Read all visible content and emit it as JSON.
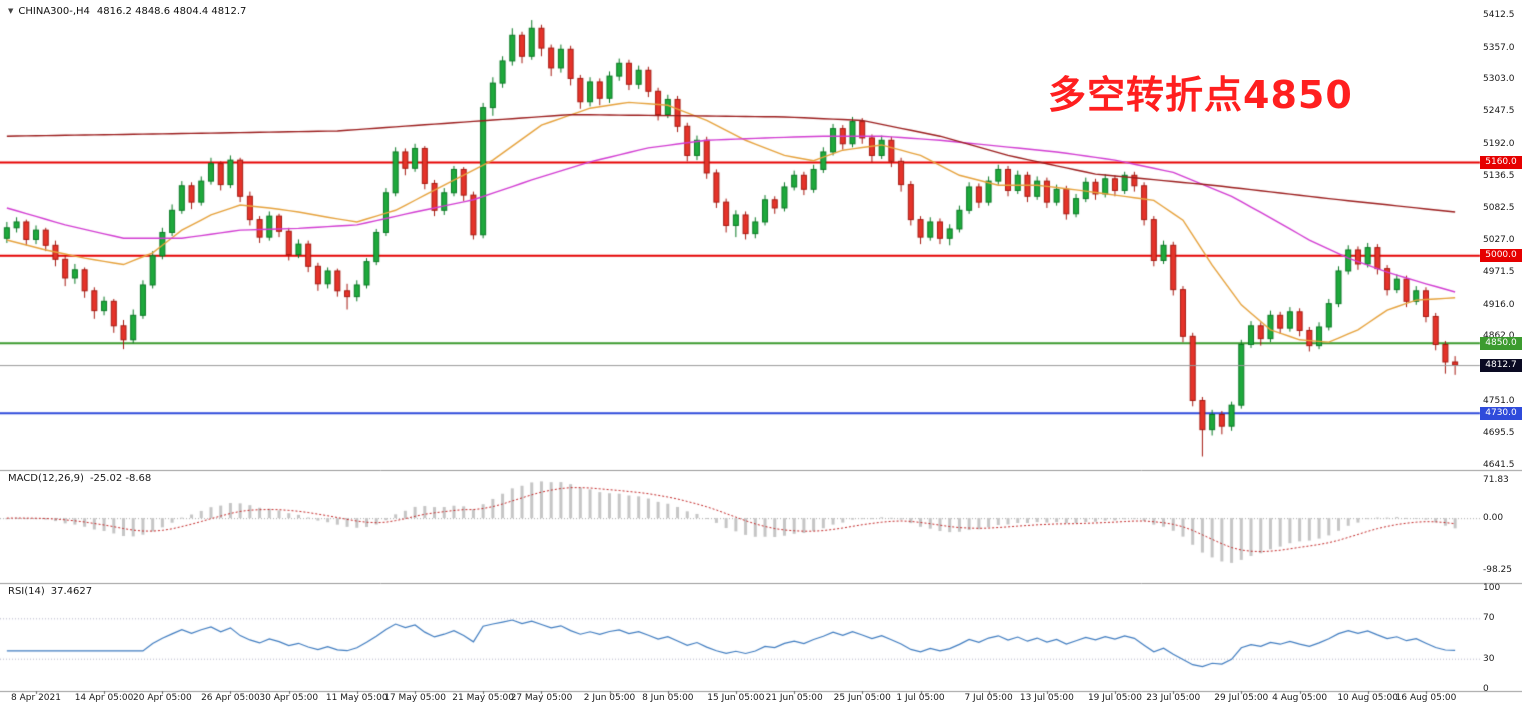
{
  "chart_data": {
    "type": "candlestick",
    "symbol": "CHINA300-,H4",
    "ohlc_text": "4816.2 4848.6 4804.4 4812.7",
    "annotation": {
      "text": "多空转折点4850",
      "color": "#FF1F1F"
    },
    "colors": {
      "bull": "#1EA93C",
      "bull_border": "#0B7A26",
      "bear": "#E5332A",
      "bear_border": "#A61A12",
      "background": "#FFFFFF",
      "separator": "#999999",
      "axis_text": "#1A1A1A",
      "current_price_line": "#9A9A9A",
      "current_price_tag_bg": "#0A0A23"
    },
    "price_axis": {
      "ticks": [
        [
          5412.5,
          "5412.5"
        ],
        [
          5357.0,
          "5357.0"
        ],
        [
          5303.0,
          "5303.0"
        ],
        [
          5247.5,
          "5247.5"
        ],
        [
          5192.0,
          "5192.0"
        ],
        [
          5136.5,
          "5136.5"
        ],
        [
          5082.5,
          "5082.5"
        ],
        [
          5027.0,
          "5027.0"
        ],
        [
          4971.5,
          "4971.5"
        ],
        [
          4916.0,
          "4916.0"
        ],
        [
          4862.0,
          "4862.0"
        ],
        [
          4751.0,
          "4751.0"
        ],
        [
          4695.5,
          "4695.5"
        ],
        [
          4641.5,
          "4641.5"
        ]
      ]
    },
    "hlines": [
      {
        "value": 5160.0,
        "label": "5160.0",
        "color": "#E60000"
      },
      {
        "value": 5000.0,
        "label": "5000.0",
        "color": "#E60000"
      },
      {
        "value": 4850.0,
        "label": "4850.0",
        "color": "#3C9B2F"
      },
      {
        "value": 4730.0,
        "label": "4730.0",
        "color": "#2F4BDB"
      }
    ],
    "price_line": {
      "value": 4812.7,
      "label": "4812.7"
    },
    "time_labels": [
      [
        "8 Apr 2021",
        3
      ],
      [
        "14 Apr 05:00",
        10
      ],
      [
        "20 Apr 05:00",
        16
      ],
      [
        "26 Apr 05:00",
        23
      ],
      [
        "30 Apr 05:00",
        29
      ],
      [
        "11 May 05:00",
        36
      ],
      [
        "17 May 05:00",
        42
      ],
      [
        "21 May 05:00",
        49
      ],
      [
        "27 May 05:00",
        55
      ],
      [
        "2 Jun 05:00",
        62
      ],
      [
        "8 Jun 05:00",
        68
      ],
      [
        "15 Jun 05:00",
        75
      ],
      [
        "21 Jun 05:00",
        81
      ],
      [
        "25 Jun 05:00",
        88
      ],
      [
        "1 Jul 05:00",
        94
      ],
      [
        "7 Jul 05:00",
        101
      ],
      [
        "13 Jul 05:00",
        107
      ],
      [
        "19 Jul 05:00",
        114
      ],
      [
        "23 Jul 05:00",
        120
      ],
      [
        "29 Jul 05:00",
        127
      ],
      [
        "4 Aug 05:00",
        133
      ],
      [
        "10 Aug 05:00",
        140
      ],
      [
        "16 Aug 05:00",
        146
      ]
    ],
    "candles": [
      [
        5030,
        5058,
        5022,
        5048
      ],
      [
        5048,
        5066,
        5040,
        5058
      ],
      [
        5058,
        5062,
        5018,
        5028
      ],
      [
        5028,
        5052,
        5020,
        5044
      ],
      [
        5044,
        5048,
        5008,
        5018
      ],
      [
        5018,
        5026,
        4982,
        4994
      ],
      [
        4994,
        5000,
        4948,
        4962
      ],
      [
        4962,
        4986,
        4952,
        4976
      ],
      [
        4976,
        4980,
        4928,
        4940
      ],
      [
        4940,
        4946,
        4892,
        4906
      ],
      [
        4906,
        4930,
        4898,
        4922
      ],
      [
        4922,
        4926,
        4868,
        4880
      ],
      [
        4880,
        4890,
        4840,
        4856
      ],
      [
        4856,
        4908,
        4850,
        4898
      ],
      [
        4898,
        4958,
        4892,
        4950
      ],
      [
        4950,
        5008,
        4944,
        5000
      ],
      [
        5000,
        5048,
        4994,
        5040
      ],
      [
        5040,
        5088,
        5034,
        5078
      ],
      [
        5078,
        5128,
        5072,
        5120
      ],
      [
        5120,
        5126,
        5080,
        5092
      ],
      [
        5092,
        5136,
        5086,
        5128
      ],
      [
        5128,
        5168,
        5122,
        5158
      ],
      [
        5158,
        5162,
        5112,
        5122
      ],
      [
        5122,
        5172,
        5116,
        5164
      ],
      [
        5164,
        5168,
        5092,
        5102
      ],
      [
        5102,
        5110,
        5052,
        5062
      ],
      [
        5062,
        5068,
        5022,
        5032
      ],
      [
        5032,
        5076,
        5026,
        5068
      ],
      [
        5068,
        5072,
        5032,
        5042
      ],
      [
        5042,
        5048,
        4992,
        5002
      ],
      [
        5002,
        5028,
        4996,
        5020
      ],
      [
        5020,
        5026,
        4972,
        4982
      ],
      [
        4982,
        4988,
        4940,
        4952
      ],
      [
        4952,
        4980,
        4944,
        4974
      ],
      [
        4974,
        4978,
        4930,
        4940
      ],
      [
        4940,
        4952,
        4908,
        4930
      ],
      [
        4930,
        4958,
        4922,
        4950
      ],
      [
        4950,
        4996,
        4944,
        4990
      ],
      [
        4990,
        5046,
        4984,
        5040
      ],
      [
        5040,
        5116,
        5034,
        5108
      ],
      [
        5108,
        5186,
        5102,
        5178
      ],
      [
        5178,
        5184,
        5138,
        5150
      ],
      [
        5150,
        5192,
        5144,
        5184
      ],
      [
        5184,
        5188,
        5114,
        5124
      ],
      [
        5124,
        5130,
        5068,
        5078
      ],
      [
        5078,
        5116,
        5070,
        5108
      ],
      [
        5108,
        5154,
        5102,
        5148
      ],
      [
        5148,
        5152,
        5094,
        5104
      ],
      [
        5104,
        5110,
        5028,
        5036
      ],
      [
        5036,
        5262,
        5030,
        5254
      ],
      [
        5254,
        5306,
        5240,
        5296
      ],
      [
        5296,
        5342,
        5288,
        5334
      ],
      [
        5334,
        5390,
        5326,
        5378
      ],
      [
        5378,
        5384,
        5330,
        5342
      ],
      [
        5342,
        5404,
        5336,
        5390
      ],
      [
        5390,
        5396,
        5342,
        5356
      ],
      [
        5356,
        5362,
        5308,
        5322
      ],
      [
        5322,
        5362,
        5314,
        5354
      ],
      [
        5354,
        5360,
        5292,
        5304
      ],
      [
        5304,
        5310,
        5252,
        5264
      ],
      [
        5264,
        5306,
        5256,
        5298
      ],
      [
        5298,
        5304,
        5258,
        5270
      ],
      [
        5270,
        5316,
        5262,
        5308
      ],
      [
        5308,
        5338,
        5300,
        5330
      ],
      [
        5330,
        5336,
        5284,
        5294
      ],
      [
        5294,
        5326,
        5286,
        5318
      ],
      [
        5318,
        5324,
        5272,
        5282
      ],
      [
        5282,
        5288,
        5232,
        5242
      ],
      [
        5242,
        5276,
        5236,
        5268
      ],
      [
        5268,
        5274,
        5212,
        5222
      ],
      [
        5222,
        5228,
        5162,
        5172
      ],
      [
        5172,
        5206,
        5164,
        5198
      ],
      [
        5198,
        5204,
        5132,
        5142
      ],
      [
        5142,
        5148,
        5082,
        5092
      ],
      [
        5092,
        5098,
        5040,
        5052
      ],
      [
        5052,
        5078,
        5032,
        5070
      ],
      [
        5070,
        5076,
        5028,
        5038
      ],
      [
        5038,
        5066,
        5030,
        5058
      ],
      [
        5058,
        5104,
        5052,
        5096
      ],
      [
        5096,
        5102,
        5072,
        5082
      ],
      [
        5082,
        5126,
        5076,
        5118
      ],
      [
        5118,
        5146,
        5112,
        5138
      ],
      [
        5138,
        5144,
        5104,
        5114
      ],
      [
        5114,
        5156,
        5108,
        5148
      ],
      [
        5148,
        5186,
        5142,
        5178
      ],
      [
        5178,
        5226,
        5172,
        5218
      ],
      [
        5218,
        5224,
        5182,
        5192
      ],
      [
        5192,
        5238,
        5186,
        5230
      ],
      [
        5230,
        5236,
        5192,
        5202
      ],
      [
        5202,
        5208,
        5160,
        5172
      ],
      [
        5172,
        5206,
        5166,
        5198
      ],
      [
        5198,
        5204,
        5152,
        5162
      ],
      [
        5162,
        5168,
        5110,
        5122
      ],
      [
        5122,
        5128,
        5052,
        5062
      ],
      [
        5062,
        5068,
        5020,
        5032
      ],
      [
        5032,
        5066,
        5026,
        5058
      ],
      [
        5058,
        5064,
        5020,
        5030
      ],
      [
        5030,
        5054,
        5018,
        5046
      ],
      [
        5046,
        5086,
        5040,
        5078
      ],
      [
        5078,
        5126,
        5072,
        5118
      ],
      [
        5118,
        5124,
        5082,
        5092
      ],
      [
        5092,
        5136,
        5086,
        5128
      ],
      [
        5128,
        5156,
        5122,
        5148
      ],
      [
        5148,
        5154,
        5102,
        5112
      ],
      [
        5112,
        5146,
        5106,
        5138
      ],
      [
        5138,
        5144,
        5092,
        5102
      ],
      [
        5102,
        5136,
        5096,
        5128
      ],
      [
        5128,
        5134,
        5082,
        5092
      ],
      [
        5092,
        5122,
        5086,
        5114
      ],
      [
        5114,
        5120,
        5062,
        5072
      ],
      [
        5072,
        5106,
        5066,
        5098
      ],
      [
        5098,
        5134,
        5092,
        5126
      ],
      [
        5126,
        5132,
        5096,
        5106
      ],
      [
        5106,
        5140,
        5100,
        5132
      ],
      [
        5132,
        5138,
        5102,
        5112
      ],
      [
        5112,
        5144,
        5106,
        5138
      ],
      [
        5138,
        5144,
        5110,
        5120
      ],
      [
        5120,
        5126,
        5052,
        5062
      ],
      [
        5062,
        5068,
        4982,
        4992
      ],
      [
        4992,
        5026,
        4986,
        5018
      ],
      [
        5018,
        5024,
        4932,
        4942
      ],
      [
        4942,
        4948,
        4852,
        4862
      ],
      [
        4862,
        4868,
        4742,
        4752
      ],
      [
        4752,
        4758,
        4656,
        4702
      ],
      [
        4702,
        4736,
        4692,
        4728
      ],
      [
        4728,
        4734,
        4694,
        4708
      ],
      [
        4708,
        4750,
        4700,
        4744
      ],
      [
        4744,
        4856,
        4738,
        4848
      ],
      [
        4848,
        4888,
        4842,
        4880
      ],
      [
        4880,
        4886,
        4846,
        4858
      ],
      [
        4858,
        4906,
        4852,
        4898
      ],
      [
        4898,
        4904,
        4866,
        4876
      ],
      [
        4876,
        4912,
        4870,
        4904
      ],
      [
        4904,
        4910,
        4862,
        4872
      ],
      [
        4872,
        4878,
        4836,
        4846
      ],
      [
        4846,
        4886,
        4840,
        4878
      ],
      [
        4878,
        4926,
        4872,
        4918
      ],
      [
        4918,
        4982,
        4912,
        4974
      ],
      [
        4974,
        5018,
        4968,
        5010
      ],
      [
        5010,
        5016,
        4976,
        4986
      ],
      [
        4986,
        5022,
        4980,
        5014
      ],
      [
        5014,
        5020,
        4968,
        4978
      ],
      [
        4978,
        4984,
        4932,
        4942
      ],
      [
        4942,
        4968,
        4936,
        4960
      ],
      [
        4960,
        4966,
        4912,
        4922
      ],
      [
        4922,
        4948,
        4916,
        4940
      ],
      [
        4940,
        4946,
        4886,
        4896
      ],
      [
        4896,
        4902,
        4838,
        4848
      ],
      [
        4848,
        4854,
        4798,
        4818
      ],
      [
        4818,
        4828,
        4796,
        4812.7
      ]
    ],
    "ma_lines": [
      {
        "name": "ma-fast-orange",
        "color": "#E6A23C",
        "points": [
          [
            0,
            5027
          ],
          [
            4,
            5010
          ],
          [
            8,
            4996
          ],
          [
            12,
            4985
          ],
          [
            15,
            5005
          ],
          [
            18,
            5044
          ],
          [
            21,
            5070
          ],
          [
            24,
            5087
          ],
          [
            27,
            5082
          ],
          [
            30,
            5075
          ],
          [
            33,
            5066
          ],
          [
            36,
            5058
          ],
          [
            40,
            5078
          ],
          [
            45,
            5121
          ],
          [
            50,
            5164
          ],
          [
            55,
            5224
          ],
          [
            60,
            5253
          ],
          [
            64,
            5263
          ],
          [
            68,
            5258
          ],
          [
            72,
            5232
          ],
          [
            76,
            5198
          ],
          [
            80,
            5172
          ],
          [
            83,
            5163
          ],
          [
            86,
            5181
          ],
          [
            90,
            5190
          ],
          [
            94,
            5172
          ],
          [
            98,
            5138
          ],
          [
            102,
            5121
          ],
          [
            106,
            5121
          ],
          [
            110,
            5113
          ],
          [
            114,
            5104
          ],
          [
            118,
            5095
          ],
          [
            121,
            5061
          ],
          [
            124,
            4984
          ],
          [
            127,
            4916
          ],
          [
            130,
            4873
          ],
          [
            133,
            4856
          ],
          [
            136,
            4852
          ],
          [
            139,
            4873
          ],
          [
            142,
            4907
          ],
          [
            145,
            4924
          ],
          [
            149,
            4928
          ]
        ]
      },
      {
        "name": "ma-mid-magenta",
        "color": "#D23CD2",
        "points": [
          [
            0,
            5082
          ],
          [
            6,
            5053
          ],
          [
            12,
            5030
          ],
          [
            18,
            5030
          ],
          [
            24,
            5044
          ],
          [
            30,
            5047
          ],
          [
            36,
            5053
          ],
          [
            42,
            5075
          ],
          [
            48,
            5096
          ],
          [
            54,
            5130
          ],
          [
            60,
            5161
          ],
          [
            66,
            5185
          ],
          [
            72,
            5198
          ],
          [
            78,
            5202
          ],
          [
            84,
            5205
          ],
          [
            90,
            5205
          ],
          [
            96,
            5198
          ],
          [
            102,
            5188
          ],
          [
            108,
            5178
          ],
          [
            114,
            5164
          ],
          [
            120,
            5143
          ],
          [
            126,
            5102
          ],
          [
            130,
            5065
          ],
          [
            134,
            5027
          ],
          [
            138,
            4996
          ],
          [
            142,
            4972
          ],
          [
            146,
            4952
          ],
          [
            149,
            4938
          ]
        ]
      },
      {
        "name": "ma-slow-darkred",
        "color": "#9B1C1C",
        "points": [
          [
            0,
            5205
          ],
          [
            20,
            5210
          ],
          [
            34,
            5214
          ],
          [
            46,
            5228
          ],
          [
            58,
            5242
          ],
          [
            70,
            5240
          ],
          [
            80,
            5238
          ],
          [
            88,
            5232
          ],
          [
            96,
            5205
          ],
          [
            103,
            5172
          ],
          [
            112,
            5140
          ],
          [
            124,
            5121
          ],
          [
            136,
            5098
          ],
          [
            149,
            5075
          ]
        ]
      }
    ],
    "macd": {
      "label": "MACD(12,26,9)",
      "values_text": "-25.02 -8.68",
      "fast": 12,
      "slow": 26,
      "signal": 9,
      "axis": [
        [
          71.83,
          "71.83"
        ],
        [
          0,
          "0.00"
        ],
        [
          -98.25,
          "-98.25"
        ]
      ],
      "hist_color": "#C6C6C6",
      "signal_color": "#C42828"
    },
    "rsi": {
      "label": "RSI(14)",
      "value_text": "37.4627",
      "period": 14,
      "axis": [
        [
          100,
          "100"
        ],
        [
          70,
          "70"
        ],
        [
          30,
          "30"
        ],
        [
          0,
          "0"
        ]
      ],
      "levels": [
        70,
        30
      ],
      "color": "#3F7CC0",
      "level_color": "#B4B4C8"
    }
  }
}
